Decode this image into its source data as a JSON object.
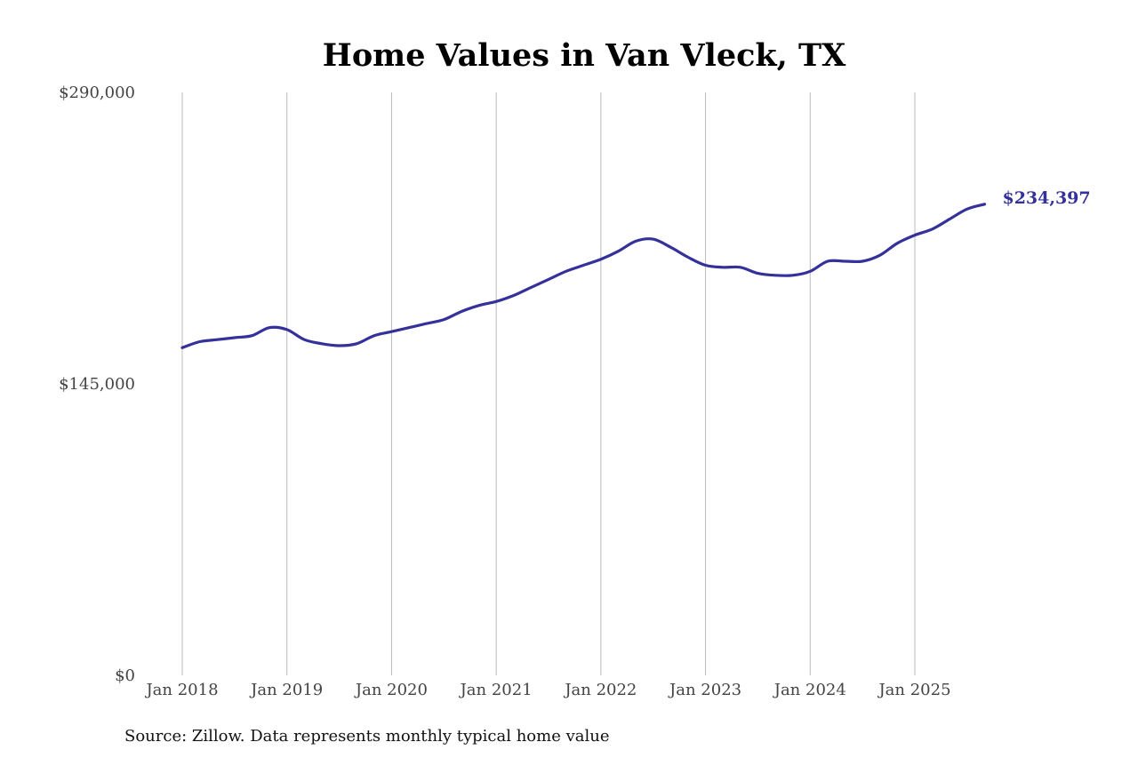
{
  "chart_data": {
    "type": "line",
    "title": "Home Values in Van Vleck, TX",
    "source": "Source: Zillow. Data represents monthly typical home value",
    "xlabel": "",
    "ylabel": "",
    "grid": "vertical",
    "ylim": [
      0,
      290000
    ],
    "yticks": [
      {
        "value": 290000,
        "label": "$290,000"
      },
      {
        "value": 145000,
        "label": "$145,000"
      },
      {
        "value": 0,
        "label": "$0"
      }
    ],
    "xticks": [
      {
        "value": "2018-01",
        "label": "Jan 2018"
      },
      {
        "value": "2019-01",
        "label": "Jan 2019"
      },
      {
        "value": "2020-01",
        "label": "Jan 2020"
      },
      {
        "value": "2021-01",
        "label": "Jan 2021"
      },
      {
        "value": "2022-01",
        "label": "Jan 2022"
      },
      {
        "value": "2023-01",
        "label": "Jan 2023"
      },
      {
        "value": "2024-01",
        "label": "Jan 2024"
      },
      {
        "value": "2025-01",
        "label": "Jan 2025"
      }
    ],
    "line_color": "#35319a",
    "grid_color": "#bbbbbb",
    "end_label": "$234,397",
    "series": [
      {
        "x": [
          "2018-01",
          "2018-03",
          "2018-05",
          "2018-07",
          "2018-09",
          "2018-11",
          "2019-01",
          "2019-03",
          "2019-05",
          "2019-07",
          "2019-09",
          "2019-11",
          "2020-01",
          "2020-03",
          "2020-05",
          "2020-07",
          "2020-09",
          "2020-11",
          "2021-01",
          "2021-03",
          "2021-05",
          "2021-07",
          "2021-09",
          "2021-11",
          "2022-01",
          "2022-03",
          "2022-05",
          "2022-07",
          "2022-09",
          "2022-11",
          "2023-01",
          "2023-03",
          "2023-05",
          "2023-07",
          "2023-09",
          "2023-11",
          "2024-01",
          "2024-03",
          "2024-05",
          "2024-07",
          "2024-09",
          "2024-11",
          "2025-01",
          "2025-03",
          "2025-05",
          "2025-07",
          "2025-09"
        ],
        "y": [
          163000,
          166000,
          167000,
          168000,
          169000,
          173000,
          172000,
          167000,
          165000,
          164000,
          165000,
          169000,
          171000,
          173000,
          175000,
          177000,
          181000,
          184000,
          186000,
          189000,
          193000,
          197000,
          201000,
          204000,
          207000,
          211000,
          216000,
          217000,
          213000,
          208000,
          204000,
          203000,
          203000,
          200000,
          199000,
          199000,
          201000,
          206000,
          206000,
          206000,
          209000,
          215000,
          219000,
          222000,
          227000,
          232000,
          234397
        ]
      }
    ]
  }
}
